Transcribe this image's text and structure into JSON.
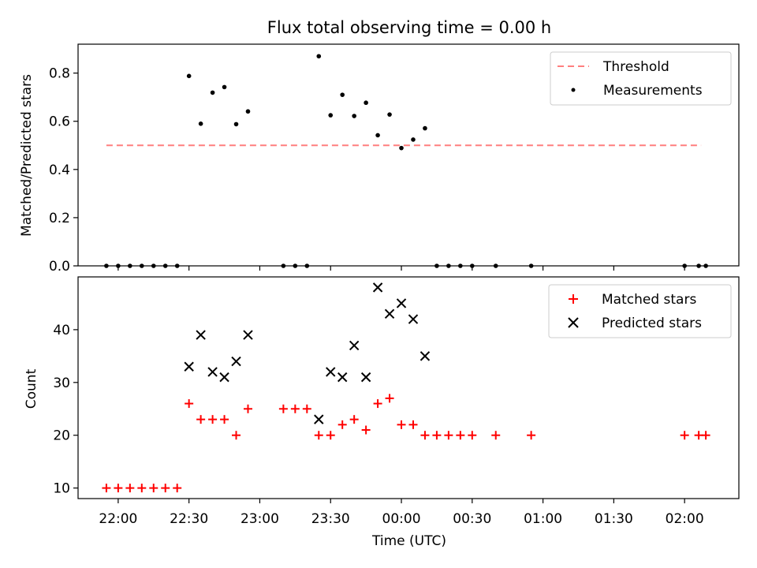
{
  "chart_data": [
    {
      "type": "scatter",
      "title": "Flux total observing time = 0.00 h",
      "xlabel": "",
      "ylabel": "Matched/Predicted stars",
      "ylim": [
        0,
        0.92
      ],
      "yticks": [
        0.0,
        0.2,
        0.4,
        0.6,
        0.8
      ],
      "ytick_labels": [
        "0.0",
        "0.2",
        "0.4",
        "0.6",
        "0.8"
      ],
      "grid": false,
      "legend_position": "top-right",
      "threshold": {
        "name": "Threshold",
        "value": 0.5,
        "x_start": "21:55",
        "x_end": "02:07",
        "color": "#ff7f7f"
      },
      "series": [
        {
          "name": "Measurements",
          "color": "#000000",
          "marker": "dot",
          "points": [
            [
              "21:55",
              0.0
            ],
            [
              "22:00",
              0.0
            ],
            [
              "22:05",
              0.0
            ],
            [
              "22:10",
              0.0
            ],
            [
              "22:15",
              0.0
            ],
            [
              "22:20",
              0.0
            ],
            [
              "22:25",
              0.0
            ],
            [
              "22:30",
              0.788
            ],
            [
              "22:35",
              0.59
            ],
            [
              "22:40",
              0.719
            ],
            [
              "22:45",
              0.742
            ],
            [
              "22:50",
              0.588
            ],
            [
              "22:55",
              0.641
            ],
            [
              "23:10",
              0.0
            ],
            [
              "23:15",
              0.0
            ],
            [
              "23:20",
              0.0
            ],
            [
              "23:25",
              0.87
            ],
            [
              "23:30",
              0.625
            ],
            [
              "23:35",
              0.71
            ],
            [
              "23:40",
              0.622
            ],
            [
              "23:45",
              0.677
            ],
            [
              "23:50",
              0.542
            ],
            [
              "23:55",
              0.628
            ],
            [
              "00:00",
              0.489
            ],
            [
              "00:05",
              0.524
            ],
            [
              "00:10",
              0.571
            ],
            [
              "00:15",
              0.0
            ],
            [
              "00:20",
              0.0
            ],
            [
              "00:25",
              0.0
            ],
            [
              "00:30",
              0.0
            ],
            [
              "00:40",
              0.0
            ],
            [
              "00:55",
              0.0
            ],
            [
              "02:00",
              0.0
            ],
            [
              "02:06",
              0.0
            ],
            [
              "02:09",
              0.0
            ]
          ]
        }
      ]
    },
    {
      "type": "scatter",
      "title": "",
      "xlabel": "Time (UTC)",
      "ylabel": "Count",
      "ylim": [
        8,
        50
      ],
      "yticks": [
        10,
        20,
        30,
        40
      ],
      "ytick_labels": [
        "10",
        "20",
        "30",
        "40"
      ],
      "xlim": [
        "21:43",
        "02:23"
      ],
      "xticks": [
        "22:00",
        "22:30",
        "23:00",
        "23:30",
        "00:00",
        "00:30",
        "01:00",
        "01:30",
        "02:00"
      ],
      "xtick_labels": [
        "22:00",
        "22:30",
        "23:00",
        "23:30",
        "00:00",
        "00:30",
        "01:00",
        "01:30",
        "02:00"
      ],
      "grid": false,
      "legend_position": "top-right",
      "series": [
        {
          "name": "Matched stars",
          "color": "#ff0000",
          "marker": "plus",
          "points": [
            [
              "21:55",
              10
            ],
            [
              "22:00",
              10
            ],
            [
              "22:05",
              10
            ],
            [
              "22:10",
              10
            ],
            [
              "22:15",
              10
            ],
            [
              "22:20",
              10
            ],
            [
              "22:25",
              10
            ],
            [
              "22:30",
              26
            ],
            [
              "22:35",
              23
            ],
            [
              "22:40",
              23
            ],
            [
              "22:45",
              23
            ],
            [
              "22:50",
              20
            ],
            [
              "22:55",
              25
            ],
            [
              "23:10",
              25
            ],
            [
              "23:15",
              25
            ],
            [
              "23:20",
              25
            ],
            [
              "23:25",
              20
            ],
            [
              "23:30",
              20
            ],
            [
              "23:35",
              22
            ],
            [
              "23:40",
              23
            ],
            [
              "23:45",
              21
            ],
            [
              "23:50",
              26
            ],
            [
              "23:55",
              27
            ],
            [
              "00:00",
              22
            ],
            [
              "00:05",
              22
            ],
            [
              "00:10",
              20
            ],
            [
              "00:15",
              20
            ],
            [
              "00:20",
              20
            ],
            [
              "00:25",
              20
            ],
            [
              "00:30",
              20
            ],
            [
              "00:40",
              20
            ],
            [
              "00:55",
              20
            ],
            [
              "02:00",
              20
            ],
            [
              "02:06",
              20
            ],
            [
              "02:09",
              20
            ]
          ]
        },
        {
          "name": "Predicted stars",
          "color": "#000000",
          "marker": "x",
          "points": [
            [
              "22:30",
              33
            ],
            [
              "22:35",
              39
            ],
            [
              "22:40",
              32
            ],
            [
              "22:45",
              31
            ],
            [
              "22:50",
              34
            ],
            [
              "22:55",
              39
            ],
            [
              "23:25",
              23
            ],
            [
              "23:30",
              32
            ],
            [
              "23:35",
              31
            ],
            [
              "23:40",
              37
            ],
            [
              "23:45",
              31
            ],
            [
              "23:50",
              48
            ],
            [
              "23:55",
              43
            ],
            [
              "00:00",
              45
            ],
            [
              "00:05",
              42
            ],
            [
              "00:10",
              35
            ]
          ]
        }
      ]
    }
  ]
}
